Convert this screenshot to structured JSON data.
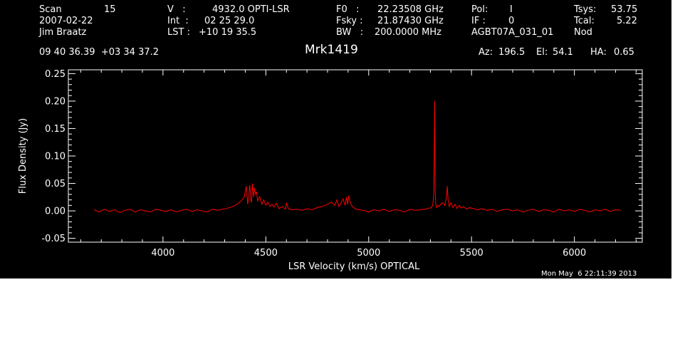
{
  "header": {
    "scan_label": "Scan",
    "scan_value": "15",
    "date": "2007-02-22",
    "observer": "Jim Braatz",
    "v_label": "V   :",
    "v_value": "4932.0 OPTI-LSR",
    "int_label": "Int  :",
    "int_value": "02 25 29.0",
    "lst_label": "LST :",
    "lst_value": "+10 19 35.5",
    "f0_label": "F0   :",
    "f0_value": "22.23508 GHz",
    "fsky_label": "Fsky :",
    "fsky_value": "21.87430 GHz",
    "bw_label": "BW   :",
    "bw_value": "200.0000 MHz",
    "pol_label": "Pol:",
    "pol_value": "I",
    "if_label": "IF :",
    "if_value": "0",
    "project": "AGBT07A_031_01",
    "tsys_label": "Tsys:",
    "tsys_value": "53.75",
    "tcal_label": "Tcal:",
    "tcal_value": "5.22",
    "proc": "Nod",
    "coords": "09 40 36.39  +03 34 37.2",
    "source": "Mrk1419",
    "az_label": "Az:",
    "az_value": "196.5",
    "el_label": "El:",
    "el_value": "54.1",
    "ha_label": "HA:",
    "ha_value": "0.65"
  },
  "timestamp": "Mon May  6 22:11:39 2013",
  "colors": {
    "background": "#000000",
    "axes": "#ffffff",
    "trace": "#ff0000",
    "page": "#ffffff"
  },
  "chart_data": {
    "type": "line",
    "title": "Mrk1419",
    "xlabel": "LSR Velocity (km/s) OPTICAL",
    "ylabel": "Flux Density (Jy)",
    "xlim": [
      3540,
      6330
    ],
    "ylim": [
      -0.057,
      0.257
    ],
    "xticks": [
      4000,
      4500,
      5000,
      5500,
      6000
    ],
    "xtick_labels": [
      "4000",
      "4500",
      "5000",
      "5500",
      "6000"
    ],
    "yticks": [
      -0.05,
      0.0,
      0.05,
      0.1,
      0.15,
      0.2,
      0.25
    ],
    "ytick_labels": [
      "-0.05",
      "0.00",
      "0.05",
      "0.10",
      "0.15",
      "0.20",
      "0.25"
    ],
    "grid": false,
    "series": [
      {
        "x": [
          3665,
          3690,
          3715,
          3740,
          3765,
          3790,
          3815,
          3840,
          3865,
          3890,
          3915,
          3940,
          3965,
          3990,
          4015,
          4040,
          4065,
          4090,
          4115,
          4140,
          4165,
          4190,
          4215,
          4240,
          4265,
          4290,
          4315,
          4340,
          4360,
          4380,
          4395,
          4405,
          4412,
          4418,
          4422,
          4426,
          4430,
          4435,
          4440,
          4445,
          4450,
          4455,
          4460,
          4470,
          4480,
          4490,
          4500,
          4510,
          4520,
          4530,
          4540,
          4550,
          4565,
          4580,
          4595,
          4600,
          4610,
          4625,
          4650,
          4675,
          4700,
          4725,
          4750,
          4775,
          4800,
          4820,
          4835,
          4845,
          4855,
          4865,
          4875,
          4885,
          4892,
          4898,
          4903,
          4910,
          4920,
          4935,
          4950,
          4975,
          5000,
          5025,
          5050,
          5075,
          5100,
          5125,
          5150,
          5175,
          5200,
          5225,
          5250,
          5270,
          5285,
          5295,
          5305,
          5312,
          5316,
          5319,
          5321,
          5323,
          5326,
          5330,
          5336,
          5342,
          5350,
          5360,
          5370,
          5378,
          5382,
          5386,
          5392,
          5400,
          5410,
          5420,
          5430,
          5440,
          5450,
          5460,
          5475,
          5490,
          5510,
          5530,
          5550,
          5575,
          5600,
          5625,
          5650,
          5675,
          5700,
          5725,
          5750,
          5775,
          5800,
          5825,
          5850,
          5875,
          5900,
          5925,
          5950,
          5975,
          6000,
          6025,
          6050,
          6075,
          6100,
          6125,
          6150,
          6175,
          6200,
          6225
        ],
        "y": [
          0.002,
          -0.002,
          0.003,
          -0.001,
          0.002,
          -0.003,
          0.001,
          0.003,
          -0.002,
          0.002,
          0.0,
          -0.002,
          0.003,
          0.001,
          -0.001,
          0.002,
          -0.002,
          0.001,
          0.003,
          -0.001,
          0.002,
          0.0,
          -0.002,
          0.003,
          0.001,
          0.003,
          0.005,
          0.008,
          0.012,
          0.018,
          0.025,
          0.045,
          0.012,
          0.03,
          0.047,
          0.022,
          0.015,
          0.05,
          0.025,
          0.042,
          0.03,
          0.035,
          0.018,
          0.026,
          0.012,
          0.02,
          0.01,
          0.016,
          0.008,
          0.012,
          0.007,
          0.014,
          0.004,
          0.008,
          0.003,
          0.014,
          0.004,
          0.002,
          0.003,
          0.001,
          0.004,
          0.002,
          0.006,
          0.008,
          0.012,
          0.016,
          0.01,
          0.02,
          0.008,
          0.014,
          0.022,
          0.01,
          0.025,
          0.012,
          0.028,
          0.015,
          0.008,
          0.004,
          0.002,
          0.001,
          -0.002,
          0.002,
          0.0,
          0.003,
          -0.001,
          0.002,
          0.001,
          -0.002,
          0.003,
          0.001,
          0.002,
          0.003,
          0.004,
          0.005,
          0.006,
          0.012,
          0.03,
          0.115,
          0.2,
          0.04,
          0.012,
          0.006,
          0.01,
          0.008,
          0.012,
          0.015,
          0.01,
          0.025,
          0.045,
          0.02,
          0.008,
          0.015,
          0.006,
          0.012,
          0.004,
          0.01,
          0.005,
          0.008,
          0.003,
          0.006,
          0.004,
          0.002,
          0.004,
          0.001,
          0.003,
          -0.001,
          0.002,
          0.003,
          0.0,
          0.002,
          -0.002,
          0.001,
          0.003,
          -0.001,
          0.002,
          0.001,
          -0.002,
          0.003,
          0.0,
          0.002,
          -0.001,
          0.003,
          0.001,
          -0.002,
          0.002,
          0.0,
          0.003,
          -0.001,
          0.002,
          0.001
        ]
      }
    ]
  }
}
